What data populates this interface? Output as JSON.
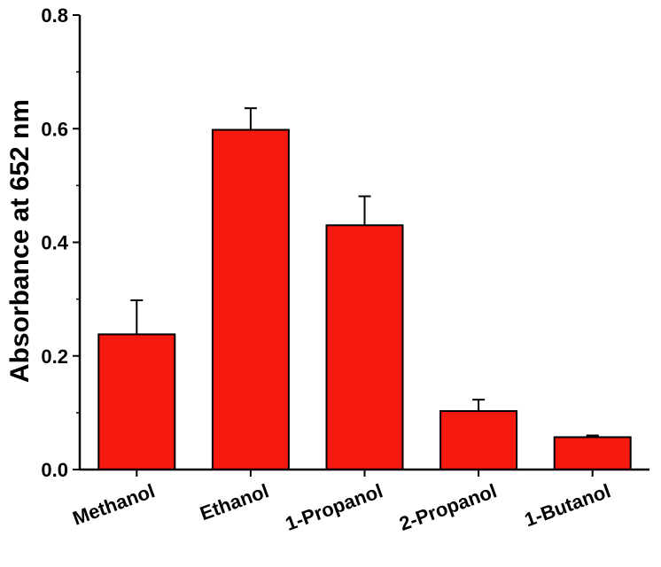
{
  "chart_data": {
    "type": "bar",
    "title": "",
    "xlabel": "",
    "ylabel": "Absorbance at 652 nm",
    "categories": [
      "Methanol",
      "Ethanol",
      "1-Propanol",
      "2-Propanol",
      "1-Butanol"
    ],
    "values": [
      0.238,
      0.598,
      0.43,
      0.103,
      0.057
    ],
    "errors": [
      0.06,
      0.038,
      0.051,
      0.02,
      0.003
    ],
    "ylim": [
      0,
      0.8
    ],
    "yticks": [
      "0.0",
      "0.2",
      "0.4",
      "0.6",
      "0.8"
    ],
    "grid": false,
    "legend": "none",
    "bar_color": "#f5190f",
    "edge_color": "#000000"
  }
}
